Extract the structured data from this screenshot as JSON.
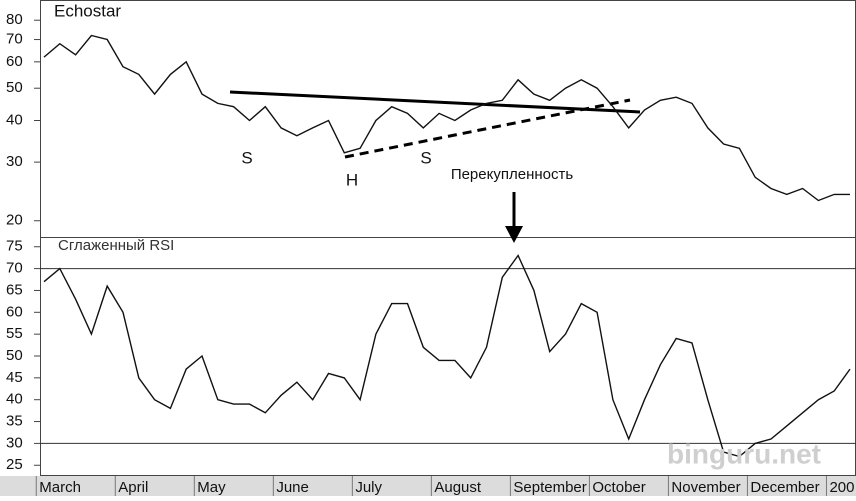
{
  "chart_data": [
    {
      "type": "line",
      "title": "Echostar",
      "log_scale": true,
      "color": "#111111",
      "categories": [
        "March",
        null,
        null,
        null,
        null,
        "April",
        null,
        null,
        null,
        null,
        "May",
        null,
        null,
        null,
        null,
        "June",
        null,
        null,
        null,
        null,
        "July",
        null,
        null,
        null,
        null,
        "August",
        null,
        null,
        null,
        null,
        "September",
        null,
        null,
        null,
        null,
        "October",
        null,
        null,
        null,
        null,
        "November",
        null,
        null,
        null,
        null,
        "December",
        null,
        null,
        null,
        null,
        "200",
        null
      ],
      "values": [
        62,
        68,
        63,
        72,
        70,
        58,
        55,
        48,
        55,
        60,
        48,
        45,
        44,
        40,
        44,
        38,
        36,
        38,
        40,
        32,
        33,
        40,
        44,
        42,
        38,
        42,
        40,
        43,
        45,
        46,
        53,
        48,
        46,
        50,
        53,
        50,
        44,
        38,
        43,
        46,
        47,
        45,
        38,
        34,
        33,
        27,
        25,
        24,
        25,
        23,
        24,
        24
      ],
      "ylim": [
        18,
        92
      ],
      "yticks": [
        20,
        30,
        40,
        50,
        60,
        70,
        80
      ],
      "annotations": [
        "S",
        "H",
        "S"
      ]
    },
    {
      "type": "line",
      "title": "Сглаженный RSI",
      "color": "#111111",
      "values": [
        67,
        70,
        63,
        55,
        66,
        60,
        45,
        40,
        38,
        47,
        50,
        40,
        39,
        39,
        37,
        41,
        44,
        40,
        46,
        45,
        40,
        55,
        62,
        62,
        52,
        49,
        49,
        45,
        52,
        68,
        73,
        65,
        51,
        55,
        62,
        60,
        40,
        31,
        40,
        48,
        54,
        53,
        40,
        28,
        27,
        30,
        31,
        34,
        37,
        40,
        42,
        47
      ],
      "ylim": [
        23,
        77
      ],
      "yticks": [
        25,
        30,
        35,
        40,
        45,
        50,
        55,
        60,
        65,
        70,
        75
      ],
      "levels": [
        30,
        70
      ],
      "annotation": "Перекупленность"
    }
  ],
  "watermark": "binguru.net"
}
